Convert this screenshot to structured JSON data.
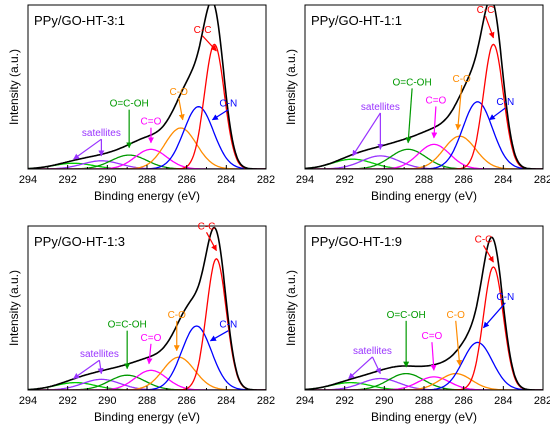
{
  "figure": {
    "xlabel": "Binding energy (eV)",
    "ylabel": "Intensity (a.u.)"
  },
  "chart_data": [
    {
      "type": "line",
      "title": "PPy/GO-HT-3:1",
      "xlabel": "Binding energy (eV)",
      "ylabel": "Intensity (a.u.)",
      "xlim": [
        294,
        282
      ],
      "xticks": [
        294,
        292,
        290,
        288,
        286,
        284,
        282
      ],
      "y_ticks_shown": false,
      "baseline": 0.0,
      "components": [
        {
          "name": "satellites",
          "center": 291.7,
          "amp": 0.035,
          "width": 1.0,
          "color": "#00cc00"
        },
        {
          "name": "satellites",
          "center": 290.3,
          "amp": 0.05,
          "width": 0.95,
          "color": "#9933ff"
        },
        {
          "name": "O=C-OH",
          "center": 288.9,
          "amp": 0.085,
          "width": 0.9,
          "color": "#009900"
        },
        {
          "name": "C=O",
          "center": 287.8,
          "amp": 0.12,
          "width": 0.8,
          "color": "#ff00ff"
        },
        {
          "name": "C-O",
          "center": 286.3,
          "amp": 0.25,
          "width": 0.8,
          "color": "#ff8c00"
        },
        {
          "name": "C-N",
          "center": 285.4,
          "amp": 0.38,
          "width": 0.75,
          "color": "#0000ff"
        },
        {
          "name": "C-C",
          "center": 284.6,
          "amp": 0.76,
          "width": 0.5,
          "color": "#ff0000"
        }
      ],
      "envelope_color": "#000000",
      "annotations": [
        {
          "text": "satellites",
          "x": 290.3,
          "y": 0.2,
          "color": "#9933ff",
          "arrow_to": [
            291.7,
            0.06
          ],
          "arrow2_to": [
            290.3,
            0.08
          ]
        },
        {
          "text": "O=C-OH",
          "x": 288.9,
          "y": 0.38,
          "color": "#009900",
          "arrow_to": [
            288.9,
            0.13
          ]
        },
        {
          "text": "C=O",
          "x": 287.8,
          "y": 0.27,
          "color": "#ff00ff",
          "arrow_to": [
            287.8,
            0.16
          ]
        },
        {
          "text": "C-O",
          "x": 286.4,
          "y": 0.45,
          "color": "#ff8c00",
          "arrow_to": [
            286.2,
            0.3
          ]
        },
        {
          "text": "C-C",
          "x": 285.2,
          "y": 0.83,
          "color": "#ff0000",
          "arrow_to": [
            284.5,
            0.72
          ]
        },
        {
          "text": "C-N",
          "x": 283.9,
          "y": 0.38,
          "color": "#0000ff",
          "arrow_to": [
            284.7,
            0.3
          ]
        }
      ]
    },
    {
      "type": "line",
      "title": "PPy/GO-HT-1:1",
      "xlabel": "Binding energy (eV)",
      "ylabel": "Intensity (a.u.)",
      "xlim": [
        294,
        282
      ],
      "xticks": [
        294,
        292,
        290,
        288,
        286,
        284,
        282
      ],
      "y_ticks_shown": false,
      "baseline": 0.0,
      "components": [
        {
          "name": "satellites",
          "center": 291.6,
          "amp": 0.06,
          "width": 1.0,
          "color": "#00cc00"
        },
        {
          "name": "satellites",
          "center": 290.2,
          "amp": 0.08,
          "width": 0.95,
          "color": "#9933ff"
        },
        {
          "name": "O=C-OH",
          "center": 288.8,
          "amp": 0.12,
          "width": 0.9,
          "color": "#009900"
        },
        {
          "name": "C=O",
          "center": 287.5,
          "amp": 0.15,
          "width": 0.8,
          "color": "#ff00ff"
        },
        {
          "name": "C-O",
          "center": 286.2,
          "amp": 0.2,
          "width": 0.8,
          "color": "#ff8c00"
        },
        {
          "name": "C-N",
          "center": 285.3,
          "amp": 0.41,
          "width": 0.75,
          "color": "#0000ff"
        },
        {
          "name": "C-C",
          "center": 284.5,
          "amp": 0.76,
          "width": 0.5,
          "color": "#ff0000"
        }
      ],
      "envelope_color": "#000000",
      "annotations": [
        {
          "text": "satellites",
          "x": 290.2,
          "y": 0.36,
          "color": "#9933ff",
          "arrow_to": [
            291.6,
            0.08
          ],
          "arrow2_to": [
            290.2,
            0.12
          ]
        },
        {
          "text": "O=C-OH",
          "x": 288.6,
          "y": 0.51,
          "color": "#009900",
          "arrow_to": [
            288.8,
            0.16
          ]
        },
        {
          "text": "C=O",
          "x": 287.4,
          "y": 0.4,
          "color": "#ff00ff",
          "arrow_to": [
            287.5,
            0.19
          ]
        },
        {
          "text": "C-O",
          "x": 286.1,
          "y": 0.53,
          "color": "#ff8c00",
          "arrow_to": [
            286.3,
            0.24
          ]
        },
        {
          "text": "C-C",
          "x": 284.9,
          "y": 0.95,
          "color": "#ff0000",
          "arrow_to": [
            284.5,
            0.8
          ]
        },
        {
          "text": "C-N",
          "x": 283.9,
          "y": 0.39,
          "color": "#0000ff",
          "arrow_to": [
            284.7,
            0.3
          ]
        }
      ]
    },
    {
      "type": "line",
      "title": "PPy/GO-HT-1:3",
      "xlabel": "Binding energy (eV)",
      "ylabel": "Intensity (a.u.)",
      "xlim": [
        294,
        282
      ],
      "xticks": [
        294,
        292,
        290,
        288,
        286,
        284,
        282
      ],
      "y_ticks_shown": false,
      "baseline": 0.0,
      "components": [
        {
          "name": "satellites",
          "center": 291.6,
          "amp": 0.045,
          "width": 1.0,
          "color": "#00cc00"
        },
        {
          "name": "satellites",
          "center": 290.3,
          "amp": 0.065,
          "width": 0.95,
          "color": "#9933ff"
        },
        {
          "name": "O=C-OH",
          "center": 289.0,
          "amp": 0.09,
          "width": 0.9,
          "color": "#009900"
        },
        {
          "name": "C=O",
          "center": 287.8,
          "amp": 0.12,
          "width": 0.8,
          "color": "#ff00ff"
        },
        {
          "name": "C-O",
          "center": 286.4,
          "amp": 0.2,
          "width": 0.8,
          "color": "#ff8c00"
        },
        {
          "name": "C-N",
          "center": 285.5,
          "amp": 0.39,
          "width": 0.75,
          "color": "#0000ff"
        },
        {
          "name": "C-C",
          "center": 284.5,
          "amp": 0.8,
          "width": 0.5,
          "color": "#ff0000"
        }
      ],
      "envelope_color": "#000000",
      "annotations": [
        {
          "text": "satellites",
          "x": 290.4,
          "y": 0.2,
          "color": "#9933ff",
          "arrow_to": [
            291.7,
            0.07
          ],
          "arrow2_to": [
            290.3,
            0.1
          ]
        },
        {
          "text": "O=C-OH",
          "x": 289.0,
          "y": 0.38,
          "color": "#009900",
          "arrow_to": [
            289.0,
            0.13
          ]
        },
        {
          "text": "C=O",
          "x": 287.8,
          "y": 0.3,
          "color": "#ff00ff",
          "arrow_to": [
            287.9,
            0.16
          ]
        },
        {
          "text": "C-O",
          "x": 286.5,
          "y": 0.44,
          "color": "#ff8c00",
          "arrow_to": [
            286.5,
            0.24
          ]
        },
        {
          "text": "C-C",
          "x": 285.0,
          "y": 0.98,
          "color": "#ff0000",
          "arrow_to": [
            284.5,
            0.85
          ]
        },
        {
          "text": "C-N",
          "x": 283.9,
          "y": 0.38,
          "color": "#0000ff",
          "arrow_to": [
            284.8,
            0.3
          ]
        }
      ]
    },
    {
      "type": "line",
      "title": "PPy/GO-HT-1:9",
      "xlabel": "Binding energy (eV)",
      "ylabel": "Intensity (a.u.)",
      "xlim": [
        294,
        282
      ],
      "xticks": [
        294,
        292,
        290,
        288,
        286,
        284,
        282
      ],
      "y_ticks_shown": false,
      "baseline": 0.0,
      "components": [
        {
          "name": "satellites",
          "center": 291.7,
          "amp": 0.045,
          "width": 1.0,
          "color": "#00cc00"
        },
        {
          "name": "satellites",
          "center": 290.2,
          "amp": 0.07,
          "width": 0.95,
          "color": "#9933ff"
        },
        {
          "name": "O=C-OH",
          "center": 288.9,
          "amp": 0.1,
          "width": 0.9,
          "color": "#009900"
        },
        {
          "name": "C=O",
          "center": 287.5,
          "amp": 0.08,
          "width": 0.8,
          "color": "#ff00ff"
        },
        {
          "name": "C-O",
          "center": 286.4,
          "amp": 0.1,
          "width": 0.8,
          "color": "#ff8c00"
        },
        {
          "name": "C-N",
          "center": 285.3,
          "amp": 0.29,
          "width": 0.75,
          "color": "#0000ff"
        },
        {
          "name": "C-C",
          "center": 284.5,
          "amp": 0.75,
          "width": 0.5,
          "color": "#ff0000"
        }
      ],
      "envelope_color": "#000000",
      "annotations": [
        {
          "text": "satellites",
          "x": 290.6,
          "y": 0.22,
          "color": "#9933ff",
          "arrow_to": [
            291.8,
            0.07
          ],
          "arrow2_to": [
            290.2,
            0.1
          ]
        },
        {
          "text": "O=C-OH",
          "x": 288.9,
          "y": 0.44,
          "color": "#009900",
          "arrow_to": [
            288.9,
            0.14
          ]
        },
        {
          "text": "C=O",
          "x": 287.6,
          "y": 0.31,
          "color": "#ff00ff",
          "arrow_to": [
            287.5,
            0.12
          ]
        },
        {
          "text": "C-O",
          "x": 286.4,
          "y": 0.44,
          "color": "#ff8c00",
          "arrow_to": [
            286.2,
            0.15
          ]
        },
        {
          "text": "C-C",
          "x": 285.0,
          "y": 0.9,
          "color": "#ff0000",
          "arrow_to": [
            284.5,
            0.78
          ]
        },
        {
          "text": "C-N",
          "x": 283.9,
          "y": 0.55,
          "color": "#0000ff",
          "arrow_to": [
            285.0,
            0.38
          ]
        }
      ]
    }
  ]
}
